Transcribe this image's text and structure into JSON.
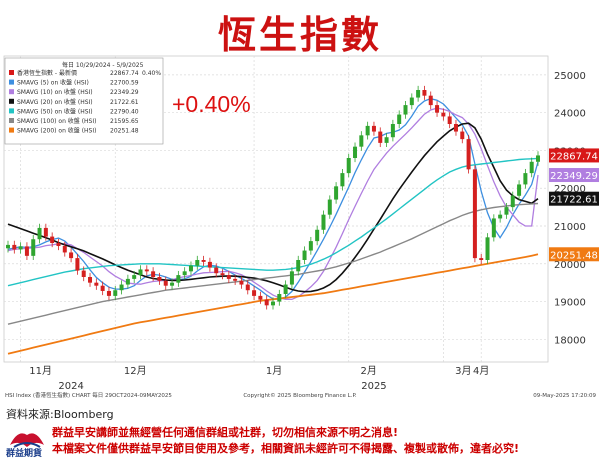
{
  "header": {
    "title": "恆生指數"
  },
  "annotation": {
    "change": "+0.40%"
  },
  "legend": {
    "header": "每日 10/29/2024 - 5/9/2025",
    "items": [
      {
        "label": "香港恆生指數 - 最新價",
        "value": "22867.74",
        "extra": "0.40%",
        "color": "#d81818"
      },
      {
        "label": "SMAVG (5) on 收盤 (HSI)",
        "value": "22700.59",
        "color": "#3d8fe0"
      },
      {
        "label": "SMAVG (10) on 收盤 (HSI)",
        "value": "22349.29",
        "color": "#b07ee0"
      },
      {
        "label": "SMAVG (20) on 收盤 (HSI)",
        "value": "21722.61",
        "color": "#111111"
      },
      {
        "label": "SMAVG (50) on 收盤 (HSI)",
        "value": "22790.40",
        "color": "#22c4c4"
      },
      {
        "label": "SMAVG (100) on 收盤 (HSI)",
        "value": "21595.65",
        "color": "#888888"
      },
      {
        "label": "SMAVG (200) on 收盤 (HSI)",
        "value": "20251.48",
        "color": "#f07a12"
      }
    ]
  },
  "price_labels": [
    {
      "value": "22867.74",
      "color": "#d81818"
    },
    {
      "value": "22349.29",
      "color": "#b07ee0"
    },
    {
      "value": "21722.61",
      "color": "#111111"
    },
    {
      "value": "20251.48",
      "color": "#f07a12"
    }
  ],
  "chart_data": {
    "type": "candlestick",
    "y_ticks": [
      "25000",
      "24000",
      "23000",
      "22000",
      "21000",
      "20000",
      "19000",
      "18000"
    ],
    "ylim": [
      17400,
      25500
    ],
    "x_month_labels": [
      "11月",
      "12月",
      "1月",
      "2月",
      "3月",
      "4月"
    ],
    "x_year_labels": [
      "2024",
      "2025"
    ],
    "grid": true,
    "series": [
      {
        "name": "香港恆生指數",
        "type": "candles",
        "closes": [
          20500,
          20380,
          20460,
          20210,
          20650,
          20950,
          20720,
          20550,
          20470,
          20300,
          20150,
          19820,
          19650,
          19500,
          19420,
          19280,
          19150,
          19300,
          19450,
          19600,
          19700,
          19850,
          19800,
          19650,
          19550,
          19420,
          19500,
          19700,
          19800,
          19950,
          20100,
          20050,
          19900,
          19750,
          19700,
          19600,
          19550,
          19450,
          19300,
          19150,
          19050,
          18900,
          19000,
          19200,
          19450,
          19800,
          20100,
          20350,
          20600,
          20900,
          21300,
          21700,
          22050,
          22400,
          22800,
          23100,
          23400,
          23650,
          23500,
          23200,
          23350,
          23700,
          23950,
          24200,
          24400,
          24600,
          24450,
          24200,
          24000,
          23900,
          23700,
          23500,
          23300,
          22500,
          20150,
          20100,
          20700,
          21200,
          21300,
          21500,
          21800,
          22100,
          22400,
          22700,
          22867.74
        ]
      },
      {
        "name": "SMAVG (5)",
        "values": [
          20380,
          20420,
          20450,
          20430,
          20450,
          20500,
          20580,
          20640,
          20680,
          20600,
          20440,
          20250,
          20060,
          19840,
          19640,
          19500,
          19380,
          19330,
          19330,
          19350,
          19420,
          19560,
          19680,
          19720,
          19700,
          19650,
          19590,
          19580,
          19600,
          19670,
          19810,
          19920,
          19960,
          19940,
          19880,
          19800,
          19700,
          19610,
          19520,
          19410,
          19300,
          19170,
          19070,
          19060,
          19120,
          19270,
          19510,
          19780,
          20060,
          20350,
          20650,
          20970,
          21310,
          21670,
          22030,
          22410,
          22750,
          23070,
          23330,
          23370,
          23450,
          23480,
          23540,
          23680,
          23910,
          24170,
          24310,
          24370,
          24330,
          24230,
          24050,
          23860,
          23680,
          23380,
          22640,
          21920,
          21350,
          20950,
          20690,
          20960,
          21300,
          21580,
          21820,
          22100,
          22700.59
        ]
      },
      {
        "name": "SMAVG (10)",
        "values": [
          20350,
          20380,
          20400,
          20410,
          20420,
          20440,
          20480,
          20500,
          20530,
          20530,
          20500,
          20400,
          20300,
          20180,
          20060,
          19940,
          19790,
          19670,
          19580,
          19490,
          19470,
          19460,
          19500,
          19530,
          19550,
          19560,
          19570,
          19630,
          19660,
          19690,
          19730,
          19760,
          19770,
          19780,
          19790,
          19800,
          19760,
          19710,
          19620,
          19510,
          19400,
          19280,
          19170,
          19100,
          19060,
          19060,
          19130,
          19250,
          19390,
          19560,
          19800,
          20110,
          20440,
          20800,
          21170,
          21520,
          21860,
          22190,
          22500,
          22720,
          22930,
          23110,
          23270,
          23430,
          23600,
          23780,
          23960,
          24070,
          24120,
          24090,
          24030,
          23940,
          23870,
          23700,
          23430,
          23050,
          22600,
          22170,
          21800,
          21500,
          21300,
          21100,
          21000,
          21000,
          22349.29
        ]
      },
      {
        "name": "SMAVG (20)",
        "values": [
          21050,
          20990,
          20930,
          20870,
          20810,
          20750,
          20690,
          20630,
          20560,
          20500,
          20450,
          20400,
          20340,
          20270,
          20200,
          20130,
          20050,
          19970,
          19900,
          19830,
          19770,
          19710,
          19650,
          19610,
          19590,
          19570,
          19560,
          19560,
          19570,
          19590,
          19610,
          19630,
          19650,
          19660,
          19670,
          19680,
          19670,
          19660,
          19640,
          19620,
          19590,
          19550,
          19500,
          19440,
          19380,
          19320,
          19280,
          19260,
          19270,
          19300,
          19360,
          19450,
          19580,
          19750,
          19950,
          20170,
          20400,
          20650,
          20920,
          21180,
          21450,
          21720,
          21970,
          22200,
          22430,
          22650,
          22860,
          23050,
          23230,
          23380,
          23520,
          23620,
          23700,
          23720,
          23600,
          23300,
          22900,
          22550,
          22200,
          21950,
          21800,
          21700,
          21650,
          21600,
          21722.61
        ]
      },
      {
        "name": "SMAVG (50)",
        "values": [
          19420,
          19460,
          19500,
          19540,
          19580,
          19620,
          19660,
          19700,
          19740,
          19780,
          19810,
          19840,
          19870,
          19890,
          19910,
          19930,
          19950,
          19960,
          19970,
          19980,
          19990,
          20000,
          20000,
          20000,
          20000,
          19990,
          19980,
          19970,
          19960,
          19950,
          19940,
          19930,
          19920,
          19910,
          19900,
          19890,
          19880,
          19870,
          19860,
          19850,
          19840,
          19830,
          19830,
          19840,
          19850,
          19870,
          19900,
          19940,
          19990,
          20050,
          20120,
          20200,
          20290,
          20390,
          20490,
          20600,
          20710,
          20830,
          20950,
          21070,
          21190,
          21320,
          21450,
          21580,
          21710,
          21840,
          21970,
          22100,
          22220,
          22330,
          22430,
          22500,
          22560,
          22600,
          22620,
          22640,
          22660,
          22680,
          22700,
          22720,
          22740,
          22760,
          22770,
          22780,
          22790.4
        ]
      },
      {
        "name": "SMAVG (100)",
        "values": [
          18400,
          18440,
          18480,
          18520,
          18560,
          18600,
          18640,
          18680,
          18720,
          18760,
          18800,
          18840,
          18880,
          18920,
          18960,
          19000,
          19030,
          19060,
          19090,
          19120,
          19150,
          19180,
          19210,
          19240,
          19270,
          19300,
          19320,
          19340,
          19360,
          19380,
          19400,
          19420,
          19440,
          19460,
          19480,
          19500,
          19520,
          19540,
          19560,
          19580,
          19600,
          19620,
          19640,
          19660,
          19680,
          19700,
          19720,
          19750,
          19780,
          19810,
          19840,
          19880,
          19920,
          19970,
          20020,
          20070,
          20130,
          20190,
          20250,
          20310,
          20380,
          20450,
          20520,
          20590,
          20660,
          20740,
          20820,
          20900,
          20980,
          21060,
          21140,
          21210,
          21280,
          21340,
          21390,
          21430,
          21460,
          21490,
          21510,
          21530,
          21550,
          21565,
          21575,
          21585,
          21595.65
        ]
      },
      {
        "name": "SMAVG (200)",
        "values": [
          17620,
          17660,
          17700,
          17740,
          17780,
          17820,
          17860,
          17900,
          17940,
          17980,
          18020,
          18060,
          18100,
          18140,
          18180,
          18220,
          18260,
          18300,
          18340,
          18380,
          18420,
          18450,
          18480,
          18510,
          18540,
          18570,
          18600,
          18630,
          18660,
          18690,
          18720,
          18750,
          18780,
          18810,
          18840,
          18870,
          18900,
          18930,
          18960,
          18990,
          19020,
          19040,
          19060,
          19080,
          19100,
          19120,
          19140,
          19160,
          19180,
          19200,
          19220,
          19250,
          19280,
          19310,
          19340,
          19370,
          19400,
          19430,
          19460,
          19490,
          19520,
          19550,
          19580,
          19610,
          19640,
          19670,
          19700,
          19730,
          19760,
          19790,
          19820,
          19850,
          19880,
          19910,
          19940,
          19970,
          20000,
          20030,
          20060,
          20090,
          20120,
          20150,
          20180,
          20215,
          20251.48
        ]
      }
    ]
  },
  "footer": {
    "chart_meta": "HSI Index (香港恆生指數) CHART 每日 29OCT2024-09MAY2025",
    "copyright": "Copyright© 2025 Bloomberg Finance L.P.",
    "timestamp": "09-May-2025 17:20:09",
    "source": "資料來源:Bloomberg",
    "disclaimer_1": "群益早安講師並無經營任何通信群組或社群，切勿相信來源不明之消息!",
    "disclaimer_2": "本檔案文件僅供群益早安節目使用及參考，相關資訊未經許可不得揭露、複製或散佈，違者必究!",
    "logo_text": "群益期貨"
  }
}
